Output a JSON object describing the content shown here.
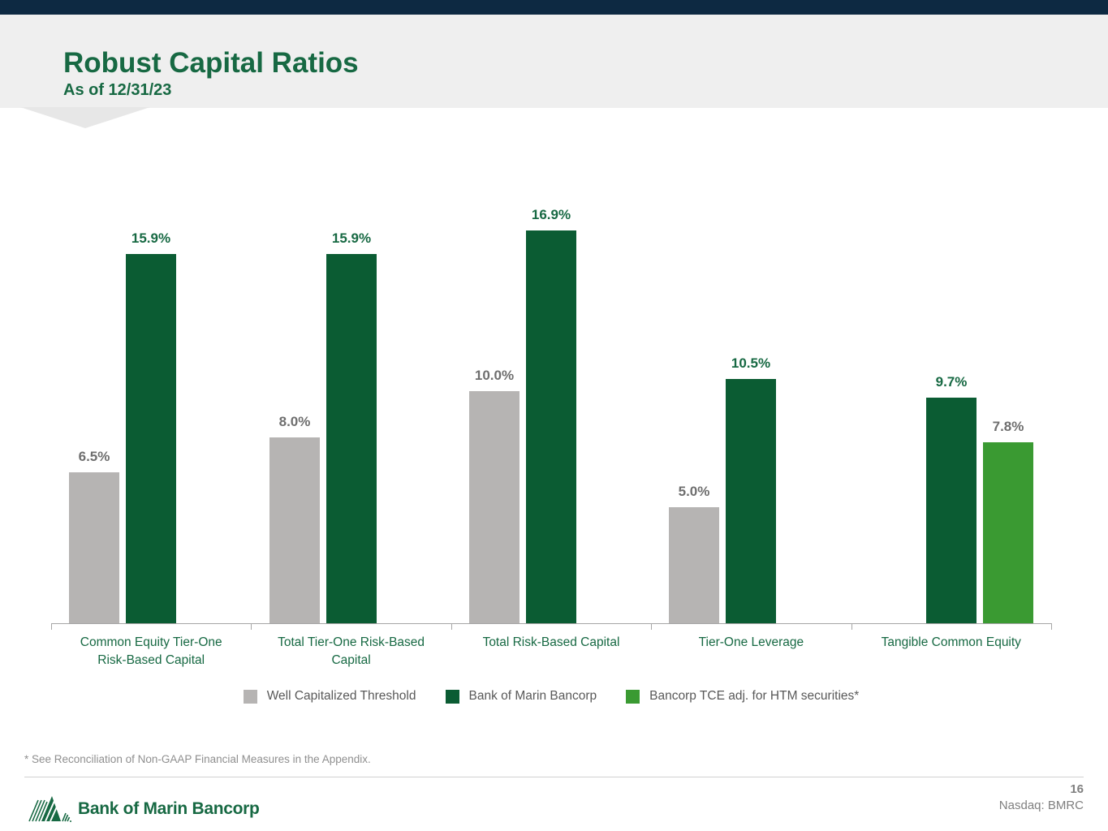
{
  "header": {
    "title": "Robust Capital Ratios",
    "subtitle": "As of 12/31/23"
  },
  "chart_data": {
    "type": "bar",
    "title": "Robust Capital Ratios as of 12/31/23",
    "categories": [
      {
        "lines": [
          "Common Equity Tier-One",
          "Risk-Based Capital"
        ]
      },
      {
        "lines": [
          "Total Tier-One Risk-Based",
          "Capital"
        ]
      },
      {
        "lines": [
          "Total Risk-Based Capital"
        ]
      },
      {
        "lines": [
          "Tier-One Leverage"
        ]
      },
      {
        "lines": [
          "Tangible Common Equity"
        ]
      }
    ],
    "series": [
      {
        "name": "Well Capitalized Threshold",
        "color": "#b6b4b3",
        "label_color": "#6e6e6e",
        "values": [
          6.5,
          8.0,
          10.0,
          5.0,
          null
        ]
      },
      {
        "name": "Bank of Marin Bancorp",
        "color": "#0b5c33",
        "label_color": "#176943",
        "values": [
          15.9,
          15.9,
          16.9,
          10.5,
          9.7
        ]
      },
      {
        "name": "Bancorp TCE adj. for HTM securities*",
        "color": "#3a9a32",
        "label_color": "#6e6e6e",
        "values": [
          null,
          null,
          null,
          null,
          7.8
        ]
      }
    ],
    "value_label_suffix": "%",
    "ylim": [
      0,
      17
    ],
    "grid": false,
    "legend_position": "bottom",
    "axis_color": "#a6a6a6"
  },
  "footnote": "* See Reconciliation of Non-GAAP Financial Measures in the Appendix.",
  "footer": {
    "brand": "Bank of Marin Bancorp",
    "page_number": "16",
    "ticker": "Nasdaq: BMRC"
  }
}
